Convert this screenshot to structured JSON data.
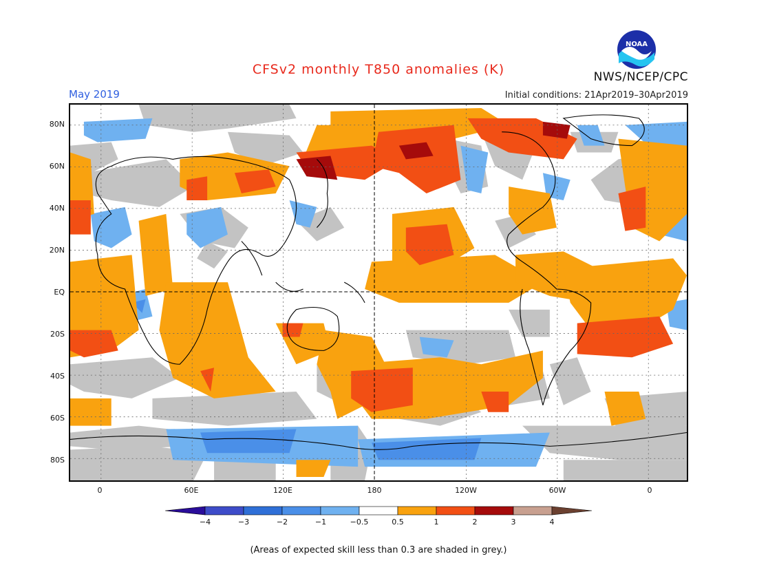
{
  "header": {
    "title": "CFSv2 monthly T850 anomalies (K)",
    "month": "May 2019",
    "initial_conditions": "Initial conditions: 21Apr2019–30Apr2019",
    "agency": "NWS/NCEP/CPC",
    "logo_text": "NOAA"
  },
  "map": {
    "lat_labels": [
      "80N",
      "60N",
      "40N",
      "20N",
      "EQ",
      "20S",
      "40S",
      "60S",
      "80S"
    ],
    "lon_labels": [
      "0",
      "60E",
      "120E",
      "180",
      "120W",
      "60W",
      "0"
    ],
    "colors": {
      "grey": "#c3c3c3",
      "blue_light": "#6fb1f0",
      "blue": "#4a8fe8",
      "orange": "#f9a20f",
      "red": "#f24f14",
      "dark_red": "#a50b0b"
    }
  },
  "colorbar": {
    "ticks": [
      "−4",
      "−3",
      "−2",
      "−1",
      "−0.5",
      "0.5",
      "1",
      "2",
      "3",
      "4"
    ],
    "colors": [
      "#2a0d9a",
      "#3d4cc9",
      "#2f6fd7",
      "#4a8fe8",
      "#6fb1f0",
      "#ffffff",
      "#f9a20f",
      "#f24f14",
      "#a50b0b",
      "#c8a090",
      "#6b4030"
    ]
  },
  "footnote": "(Areas of expected skill less than 0.3 are shaded in grey.)"
}
